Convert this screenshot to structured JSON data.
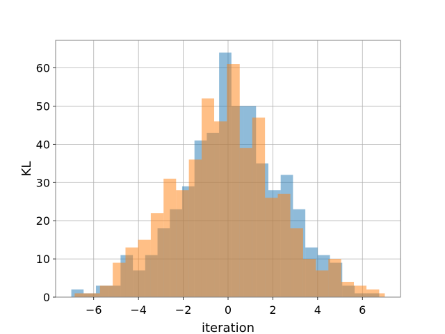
{
  "chart_data": {
    "type": "bar",
    "xlabel": "iteration",
    "ylabel": "KL",
    "xlim": [
      -7.7,
      7.7
    ],
    "ylim": [
      0,
      67.2
    ],
    "grid": true,
    "xticks": [
      -6,
      -4,
      -2,
      0,
      2,
      4,
      6
    ],
    "xtick_labels": [
      "−6",
      "−4",
      "−2",
      "0",
      "2",
      "4",
      "6"
    ],
    "yticks": [
      0,
      10,
      20,
      30,
      40,
      50,
      60
    ],
    "ytick_labels": [
      "0",
      "10",
      "20",
      "30",
      "40",
      "50",
      "60"
    ],
    "series": [
      {
        "color": "#1f77b4",
        "opacity": 0.5,
        "bins": [
          [
            -7.0,
            -6.45,
            2
          ],
          [
            -6.45,
            -5.9,
            1
          ],
          [
            -5.9,
            -5.35,
            3
          ],
          [
            -5.35,
            -4.8,
            3
          ],
          [
            -4.8,
            -4.25,
            11
          ],
          [
            -4.25,
            -3.7,
            7
          ],
          [
            -3.7,
            -3.15,
            11
          ],
          [
            -3.15,
            -2.6,
            18
          ],
          [
            -2.6,
            -2.05,
            23
          ],
          [
            -2.05,
            -1.5,
            29
          ],
          [
            -1.5,
            -0.95,
            41
          ],
          [
            -0.95,
            -0.4,
            43
          ],
          [
            -0.4,
            0.15,
            64
          ],
          [
            0.15,
            0.7,
            50
          ],
          [
            0.7,
            1.25,
            50
          ],
          [
            1.25,
            1.8,
            35
          ],
          [
            1.8,
            2.35,
            28
          ],
          [
            2.35,
            2.9,
            32
          ],
          [
            2.9,
            3.45,
            23
          ],
          [
            3.45,
            4.0,
            13
          ],
          [
            4.0,
            4.55,
            11
          ],
          [
            4.55,
            5.1,
            9
          ],
          [
            5.1,
            5.65,
            3
          ],
          [
            5.65,
            6.2,
            1
          ],
          [
            6.2,
            6.75,
            1
          ]
        ]
      },
      {
        "color": "#ff7f0e",
        "opacity": 0.5,
        "bins": [
          [
            -6.85,
            -6.28,
            1
          ],
          [
            -6.28,
            -5.72,
            1
          ],
          [
            -5.72,
            -5.15,
            3
          ],
          [
            -5.15,
            -4.58,
            9
          ],
          [
            -4.58,
            -4.02,
            13
          ],
          [
            -4.02,
            -3.45,
            15
          ],
          [
            -3.45,
            -2.88,
            22
          ],
          [
            -2.88,
            -2.32,
            31
          ],
          [
            -2.32,
            -1.75,
            28
          ],
          [
            -1.75,
            -1.18,
            36
          ],
          [
            -1.18,
            -0.62,
            52
          ],
          [
            -0.62,
            -0.05,
            46
          ],
          [
            -0.05,
            0.52,
            61
          ],
          [
            0.52,
            1.08,
            39
          ],
          [
            1.08,
            1.65,
            47
          ],
          [
            1.65,
            2.22,
            26
          ],
          [
            2.22,
            2.78,
            27
          ],
          [
            2.78,
            3.35,
            18
          ],
          [
            3.35,
            3.92,
            10
          ],
          [
            3.92,
            4.48,
            7
          ],
          [
            4.48,
            5.05,
            10
          ],
          [
            5.05,
            5.62,
            4
          ],
          [
            5.62,
            6.18,
            3
          ],
          [
            6.18,
            6.75,
            2
          ],
          [
            6.75,
            7.0,
            1
          ]
        ]
      }
    ]
  }
}
